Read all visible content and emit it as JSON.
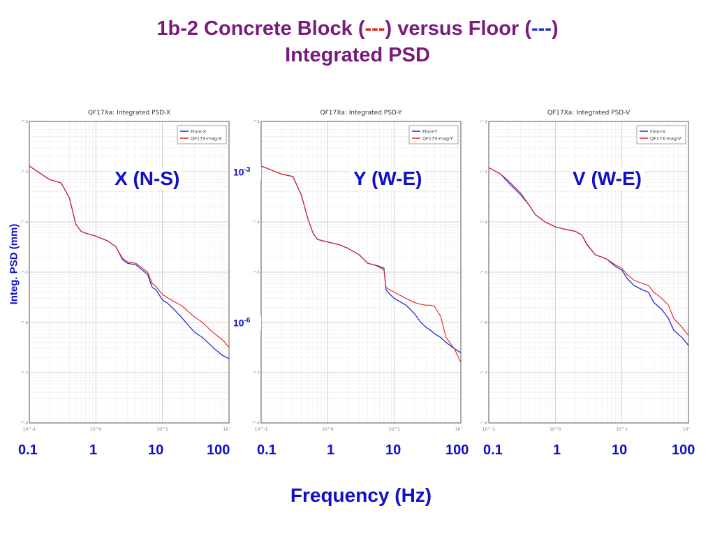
{
  "slide": {
    "title_prefix": "1b-2 Concrete Block (",
    "title_dash_red": "---",
    "title_middle": ") versus Floor (",
    "title_dash_blue": "---",
    "title_suffix": ")",
    "title_line2": "Integrated PSD",
    "ylabel": "Integ. PSD (mm)",
    "xlabel": "Frequency (Hz)",
    "freq_ticks": [
      "0.1",
      "1",
      "10",
      "100"
    ],
    "mid_tick_base": "10",
    "mid_tick_upper_exp": "-3",
    "mid_tick_lower_exp": "-6"
  },
  "colors": {
    "title": "#7a1a7e",
    "label": "#1010c8",
    "floor": "#1f2ed6",
    "block": "#e8201a"
  },
  "chart_data": [
    {
      "type": "line",
      "title": "QF17Xa: Integrated PSD-X",
      "panel_label": "X (N-S)",
      "xscale": "log",
      "yscale": "log",
      "xlim": [
        0.1,
        100
      ],
      "ylim": [
        1e-08,
        0.01
      ],
      "grid": true,
      "legend": "top-right",
      "x": [
        0.1,
        0.2,
        0.3,
        0.4,
        0.5,
        0.6,
        0.7,
        1,
        1.5,
        2,
        2.5,
        3,
        4,
        5,
        6,
        7,
        8,
        10,
        12,
        15,
        20,
        25,
        30,
        40,
        50,
        60,
        80,
        100
      ],
      "series": [
        {
          "name": "Floor-X",
          "color": "#1f2ed6",
          "values": [
            0.0013,
            0.0007,
            0.0006,
            0.0003,
            9e-05,
            6.5e-05,
            6e-05,
            5.2e-05,
            4.2e-05,
            3.2e-05,
            1.8e-05,
            1.5e-05,
            1.4e-05,
            1.1e-05,
            9e-06,
            5e-06,
            4.5e-06,
            2.8e-06,
            2.4e-06,
            1.8e-06,
            1.2e-06,
            8.5e-07,
            6.5e-07,
            5e-07,
            3.8e-07,
            3e-07,
            2.2e-07,
            1.9e-07
          ]
        },
        {
          "name": "QF17X-mag-X",
          "color": "#e8201a",
          "values": [
            0.0013,
            0.0007,
            0.0006,
            0.0003,
            9e-05,
            6.5e-05,
            6e-05,
            5.2e-05,
            4.2e-05,
            3.2e-05,
            1.9e-05,
            1.6e-05,
            1.5e-05,
            1.2e-05,
            1e-05,
            6e-06,
            5.2e-06,
            3.6e-06,
            3.1e-06,
            2.6e-06,
            2.1e-06,
            1.6e-06,
            1.3e-06,
            1e-06,
            7.5e-07,
            6e-07,
            4.5e-07,
            3.2e-07
          ]
        }
      ]
    },
    {
      "type": "line",
      "title": "QF17Xa: Integrated PSD-Y",
      "panel_label": "Y (W-E)",
      "xscale": "log",
      "yscale": "log",
      "xlim": [
        0.1,
        100
      ],
      "ylim": [
        1e-08,
        0.01
      ],
      "grid": true,
      "legend": "top-right",
      "x": [
        0.1,
        0.2,
        0.3,
        0.4,
        0.5,
        0.6,
        0.7,
        1,
        1.5,
        2,
        3,
        4,
        5,
        6,
        7,
        7.5,
        8,
        10,
        15,
        20,
        25,
        30,
        35,
        40,
        50,
        60,
        80,
        100
      ],
      "series": [
        {
          "name": "Floor-Y",
          "color": "#1f2ed6",
          "values": [
            0.0013,
            0.0009,
            0.0008,
            0.00035,
            0.00012,
            6e-05,
            4.5e-05,
            4e-05,
            3.5e-05,
            3e-05,
            2.2e-05,
            1.5e-05,
            1.4e-05,
            1.3e-05,
            1.2e-05,
            4.5e-06,
            4e-06,
            3e-06,
            2.2e-06,
            1.5e-06,
            1e-06,
            8e-07,
            7e-07,
            6e-07,
            5e-07,
            4e-07,
            3e-07,
            2.5e-07
          ]
        },
        {
          "name": "QF17X-mag-Y",
          "color": "#e8201a",
          "values": [
            0.0013,
            0.0009,
            0.0008,
            0.00035,
            0.00012,
            6e-05,
            4.5e-05,
            4e-05,
            3.5e-05,
            3e-05,
            2.2e-05,
            1.5e-05,
            1.4e-05,
            1.25e-05,
            1.1e-05,
            5e-06,
            4.7e-06,
            4e-06,
            3e-06,
            2.5e-06,
            2.3e-06,
            2.2e-06,
            2.2e-06,
            2.1e-06,
            1.3e-06,
            5e-07,
            3e-07,
            1.6e-07
          ]
        }
      ]
    },
    {
      "type": "line",
      "title": "QF17Xa: Integrated PSD-V",
      "panel_label": "V (W-E)",
      "xscale": "log",
      "yscale": "log",
      "xlim": [
        0.1,
        100
      ],
      "ylim": [
        1e-08,
        0.01
      ],
      "grid": true,
      "legend": "top-right",
      "x": [
        0.1,
        0.15,
        0.2,
        0.3,
        0.4,
        0.5,
        0.7,
        1,
        1.5,
        2,
        2.5,
        3,
        4,
        5,
        6,
        8,
        10,
        12,
        15,
        20,
        25,
        30,
        40,
        50,
        60,
        80,
        100
      ],
      "series": [
        {
          "name": "Floor-V",
          "color": "#1f2ed6",
          "values": [
            0.0012,
            0.0009,
            0.0006,
            0.00035,
            0.00022,
            0.00014,
            0.0001,
            8e-05,
            7e-05,
            6.5e-05,
            5.5e-05,
            3.5e-05,
            2.2e-05,
            2e-05,
            1.8e-05,
            1.3e-05,
            1.1e-05,
            7.5e-06,
            5.5e-06,
            4.5e-06,
            4e-06,
            2.5e-06,
            1.8e-06,
            1.2e-06,
            7e-07,
            5e-07,
            3.5e-07
          ]
        },
        {
          "name": "QF17X-mag-V",
          "color": "#e8201a",
          "values": [
            0.0012,
            0.0009,
            0.00065,
            0.00038,
            0.00022,
            0.00014,
            0.0001,
            8e-05,
            7e-05,
            6.5e-05,
            5.5e-05,
            3.6e-05,
            2.2e-05,
            2e-05,
            1.8e-05,
            1.4e-05,
            1.2e-05,
            9e-06,
            7e-06,
            6e-06,
            5.5e-06,
            4e-06,
            3e-06,
            2.2e-06,
            1.2e-06,
            8e-07,
            5.5e-07
          ]
        }
      ]
    }
  ]
}
